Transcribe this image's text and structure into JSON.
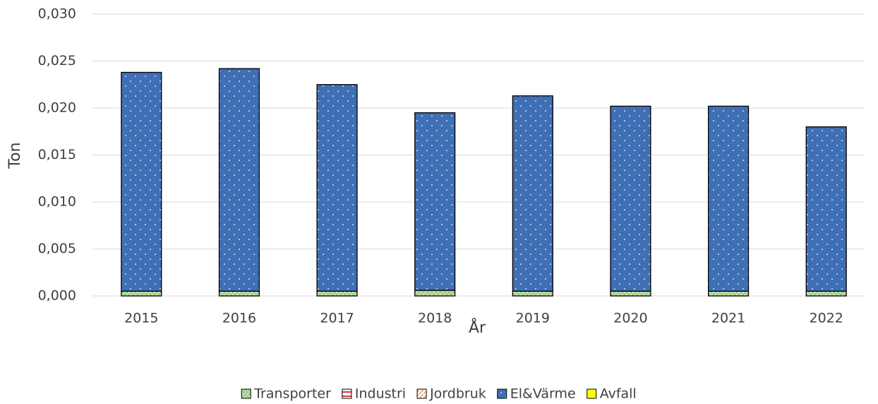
{
  "chart_data": {
    "type": "stacked_bar",
    "x_label": "År",
    "y_label": "Ton",
    "categories": [
      "2015",
      "2016",
      "2017",
      "2018",
      "2019",
      "2020",
      "2021",
      "2022"
    ],
    "series": [
      {
        "name": "Transporter",
        "color": "#c6e0b4",
        "values": [
          0.0005,
          0.0005,
          0.0005,
          0.0006,
          0.0005,
          0.0005,
          0.0005,
          0.0005
        ]
      },
      {
        "name": "Industri",
        "color": "#c00000",
        "values": [
          0,
          0,
          0,
          0,
          0,
          0,
          0,
          0
        ]
      },
      {
        "name": "Jordbruk",
        "color": "#f4b183",
        "values": [
          0,
          0,
          0,
          0,
          0,
          0,
          0,
          0
        ]
      },
      {
        "name": "El&Värme",
        "color": "#3f6fb5",
        "values": [
          0.0233,
          0.0237,
          0.022,
          0.0189,
          0.0208,
          0.0197,
          0.0197,
          0.0175
        ]
      },
      {
        "name": "Avfall",
        "color": "#ffff00",
        "values": [
          0,
          0,
          0,
          0,
          0,
          0,
          0,
          0
        ]
      }
    ],
    "ylim": [
      0,
      0.03
    ],
    "yticks": [
      {
        "value": 0,
        "label": "0,000"
      },
      {
        "value": 0.005,
        "label": "0,005"
      },
      {
        "value": 0.01,
        "label": "0,010"
      },
      {
        "value": 0.015,
        "label": "0,015"
      },
      {
        "value": 0.02,
        "label": "0,020"
      },
      {
        "value": 0.025,
        "label": "0,025"
      },
      {
        "value": 0.03,
        "label": "0,030"
      }
    ],
    "grid": true,
    "legend": "bottom"
  }
}
